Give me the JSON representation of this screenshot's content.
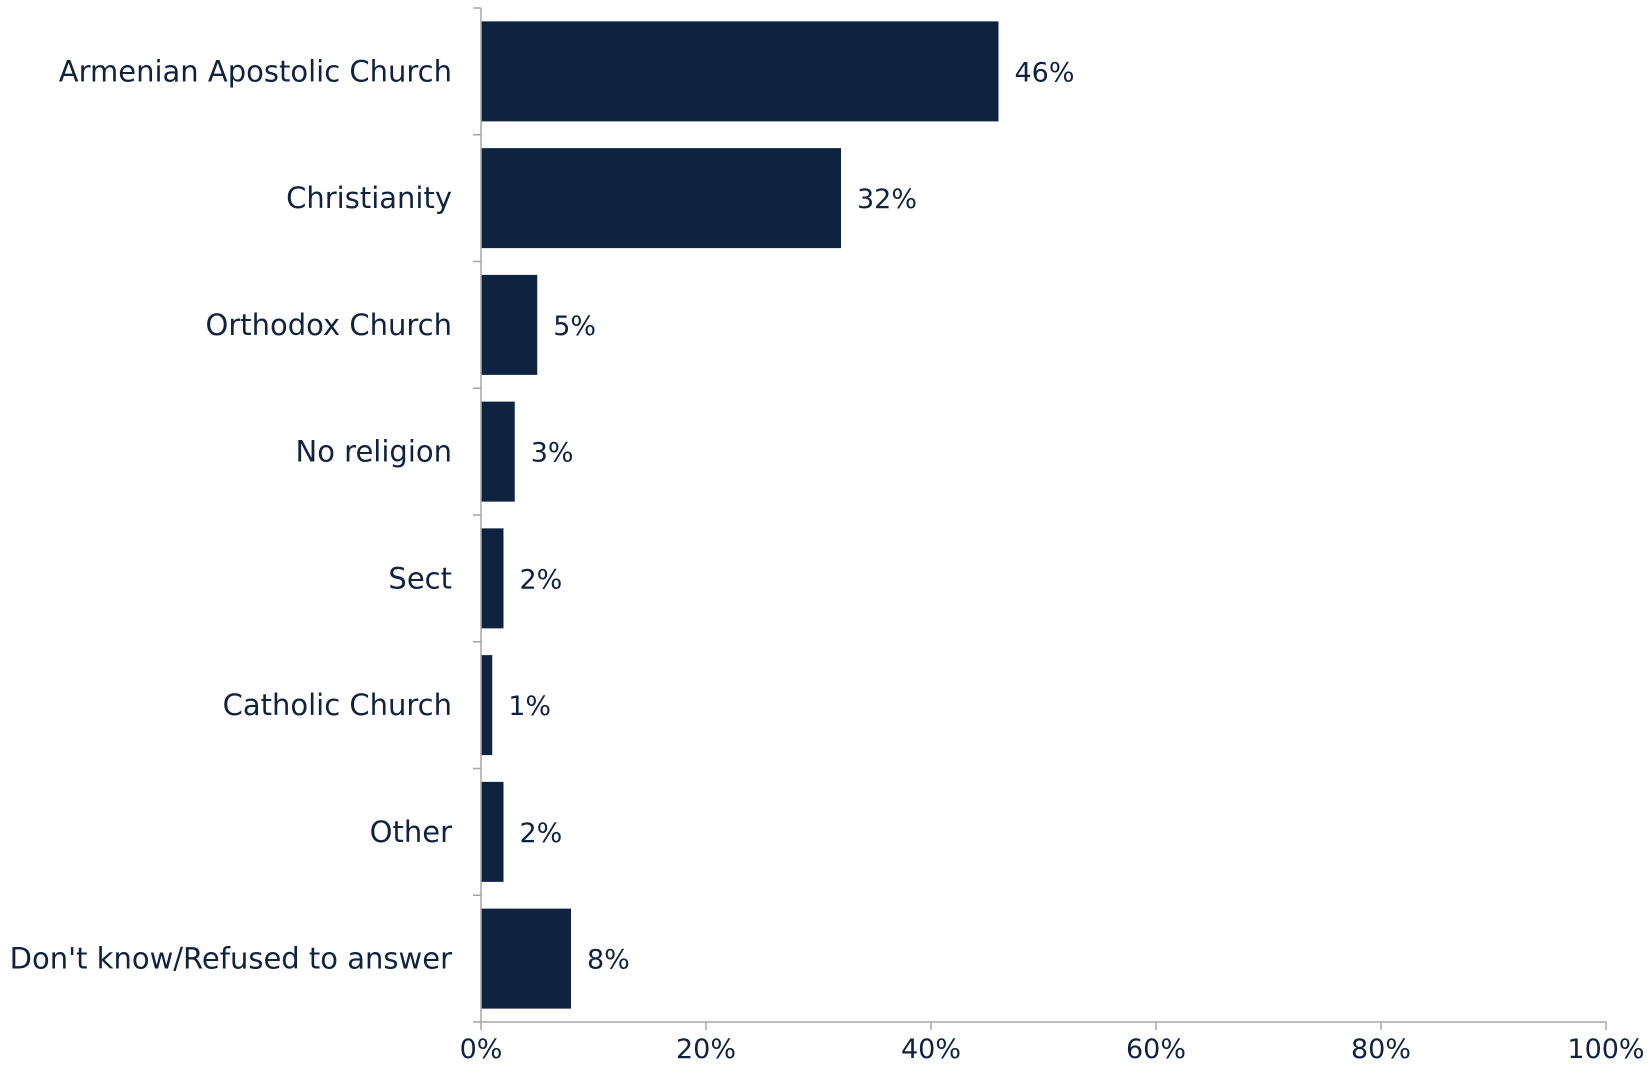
{
  "chart_data": {
    "type": "bar",
    "orientation": "horizontal",
    "categories": [
      "Armenian Apostolic Church",
      "Christianity",
      "Orthodox Church",
      "No religion",
      "Sect",
      "Catholic Church",
      "Other",
      "Don't know/Refused to answer"
    ],
    "values": [
      46,
      32,
      5,
      3,
      2,
      1,
      2,
      8
    ],
    "value_labels": [
      "46%",
      "32%",
      "5%",
      "3%",
      "2%",
      "1%",
      "2%",
      "8%"
    ],
    "xlim": [
      0,
      100
    ],
    "x_ticks": [
      0,
      20,
      40,
      60,
      80,
      100
    ],
    "x_tick_labels": [
      "0%",
      "20%",
      "40%",
      "60%",
      "80%",
      "100%"
    ],
    "title": "",
    "xlabel": "",
    "ylabel": "",
    "grid": false,
    "legend": "none",
    "bar_color": "#0f2340",
    "text_color": "#0f2340",
    "axis_color": "#a6a6a6"
  }
}
